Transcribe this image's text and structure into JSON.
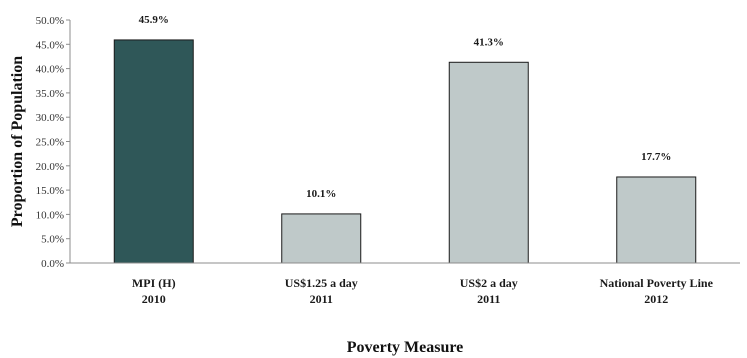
{
  "chart_data": {
    "type": "bar",
    "categories": [
      [
        "MPI (H)",
        "2010"
      ],
      [
        "US$1.25 a day",
        "2011"
      ],
      [
        "US$2 a day",
        "2011"
      ],
      [
        "National Poverty Line",
        "2012"
      ]
    ],
    "values": [
      45.9,
      10.1,
      41.3,
      17.7
    ],
    "data_labels": [
      "45.9%",
      "10.1%",
      "41.3%",
      "17.7%"
    ],
    "bar_colors": [
      "#2f5758",
      "#bfc9c9",
      "#bfc9c9",
      "#bfc9c9"
    ],
    "xlabel": "Poverty Measure",
    "ylabel": "Proportion of Population",
    "ylim": [
      0,
      50
    ],
    "yticks": [
      0,
      5,
      10,
      15,
      20,
      25,
      30,
      35,
      40,
      45,
      50
    ],
    "ytick_labels": [
      "0.0%",
      "5.0%",
      "10.0%",
      "15.0%",
      "20.0%",
      "25.0%",
      "30.0%",
      "35.0%",
      "40.0%",
      "45.0%",
      "50.0%"
    ],
    "grid": false,
    "legend": "none"
  }
}
